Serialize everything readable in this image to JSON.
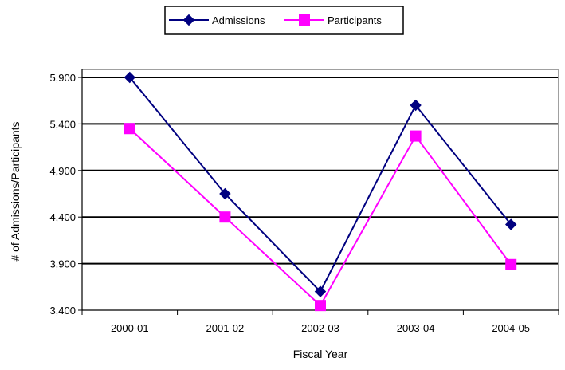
{
  "chart_data": {
    "type": "line",
    "title": "",
    "xlabel": "Fiscal Year",
    "ylabel": "# of Admissions/Participants",
    "categories": [
      "2000-01",
      "2001-02",
      "2002-03",
      "2003-04",
      "2004-05"
    ],
    "ylim": [
      3400,
      5900
    ],
    "yticks": [
      3400,
      3900,
      4400,
      4900,
      5400,
      5900
    ],
    "ytick_labels": [
      "3,400",
      "3,900",
      "4,400",
      "4,900",
      "5,400",
      "5,900"
    ],
    "grid": "horizontal",
    "legend_position": "top-center",
    "series": [
      {
        "name": "Admissions",
        "values": [
          5900,
          4650,
          3600,
          5600,
          4320
        ],
        "color": "#000080",
        "marker": "diamond"
      },
      {
        "name": "Participants",
        "values": [
          5350,
          4400,
          3450,
          5270,
          3890
        ],
        "color": "#FF00FF",
        "marker": "square"
      }
    ]
  }
}
